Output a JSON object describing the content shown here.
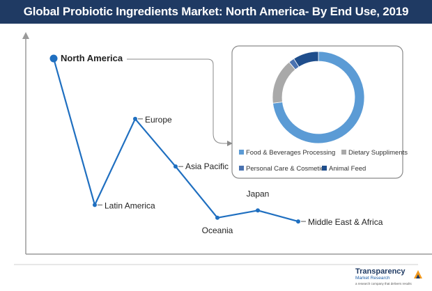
{
  "title": "Global Probiotic Ingredients Market: North America- By End Use, 2019",
  "chart_data": [
    {
      "type": "line",
      "categories": [
        "North America",
        "Latin America",
        "Europe",
        "Asia Pacific",
        "Oceania",
        "Japan",
        "Middle East & Africa"
      ],
      "values": [
        100,
        20,
        67,
        41,
        13,
        17,
        11
      ],
      "highlighted_category": "North America",
      "axes": "no ticks, no gridlines",
      "color": "#1f6fc0"
    },
    {
      "type": "pie",
      "style": "donut",
      "labels": [
        "Food & Beverages Processing",
        "Dietary Suppliments",
        "Personal Care & Cosmetic",
        "Animal Feed"
      ],
      "values": [
        73,
        16,
        2,
        9
      ],
      "colors": [
        "#5b9bd5",
        "#a9a9a9",
        "#4a72b0",
        "#1f4e8c"
      ],
      "legend_position": "bottom"
    }
  ],
  "logo": {
    "name": "Transparency Market Research",
    "line1": "Transparency",
    "line2": "Market Research",
    "line3": "a research company that delivers results"
  }
}
